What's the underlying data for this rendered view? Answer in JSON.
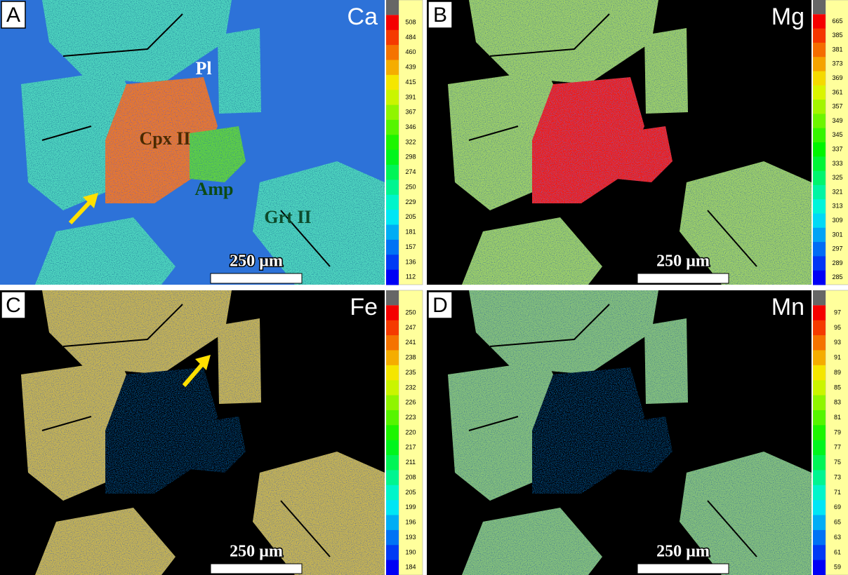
{
  "panels": [
    {
      "label": "A",
      "element": "Ca",
      "scale": [
        508,
        484,
        460,
        439,
        415,
        391,
        367,
        346,
        322,
        298,
        274,
        250,
        229,
        205,
        181,
        157,
        136,
        112
      ],
      "scale_bar": "250 µm",
      "annotations": [
        "Pl",
        "Cpx II",
        "Amp",
        "Grt II"
      ]
    },
    {
      "label": "B",
      "element": "Mg",
      "scale": [
        665,
        385,
        381,
        373,
        369,
        361,
        357,
        349,
        345,
        337,
        333,
        325,
        321,
        313,
        309,
        301,
        297,
        289,
        285
      ],
      "scale_bar": "250 µm",
      "annotations": []
    },
    {
      "label": "C",
      "element": "Fe",
      "scale": [
        250,
        247,
        241,
        238,
        235,
        232,
        226,
        223,
        220,
        217,
        211,
        208,
        205,
        199,
        196,
        193,
        190,
        184
      ],
      "scale_bar": "250 µm",
      "annotations": []
    },
    {
      "label": "D",
      "element": "Mn",
      "scale": [
        97,
        95,
        93,
        91,
        89,
        85,
        83,
        81,
        79,
        77,
        75,
        73,
        71,
        69,
        65,
        63,
        61,
        59
      ],
      "scale_bar": "250 µm",
      "annotations": []
    }
  ]
}
